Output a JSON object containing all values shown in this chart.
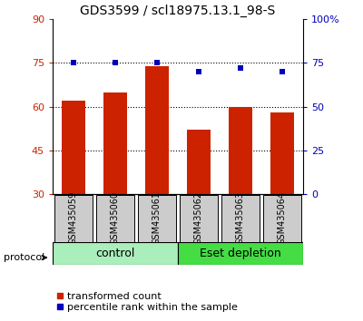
{
  "title": "GDS3599 / scl18975.13.1_98-S",
  "samples": [
    "GSM435059",
    "GSM435060",
    "GSM435061",
    "GSM435062",
    "GSM435063",
    "GSM435064"
  ],
  "bar_values": [
    62,
    65,
    74,
    52,
    60,
    58
  ],
  "dot_values": [
    75,
    75,
    75,
    70,
    72,
    70
  ],
  "bar_color": "#cc2200",
  "dot_color": "#0000bb",
  "ylim_left": [
    30,
    90
  ],
  "yticks_left": [
    30,
    45,
    60,
    75,
    90
  ],
  "ylim_right": [
    0,
    100
  ],
  "yticks_right": [
    0,
    25,
    50,
    75,
    100
  ],
  "ytick_labels_right": [
    "0",
    "25",
    "50",
    "75",
    "100%"
  ],
  "grid_values": [
    45,
    60,
    75
  ],
  "groups": [
    {
      "label": "control",
      "start": 0,
      "end": 3,
      "color": "#aaeebb"
    },
    {
      "label": "Eset depletion",
      "start": 3,
      "end": 6,
      "color": "#44dd44"
    }
  ],
  "protocol_label": "protocol",
  "legend_bar_label": "transformed count",
  "legend_dot_label": "percentile rank within the sample",
  "tick_label_color_left": "#cc2200",
  "tick_label_color_right": "#0000bb",
  "sample_box_color": "#cccccc",
  "bg_color": "#ffffff",
  "title_fontsize": 10,
  "axis_fontsize": 8,
  "legend_fontsize": 8,
  "group_fontsize": 9,
  "sample_fontsize": 7,
  "bar_width": 0.55
}
